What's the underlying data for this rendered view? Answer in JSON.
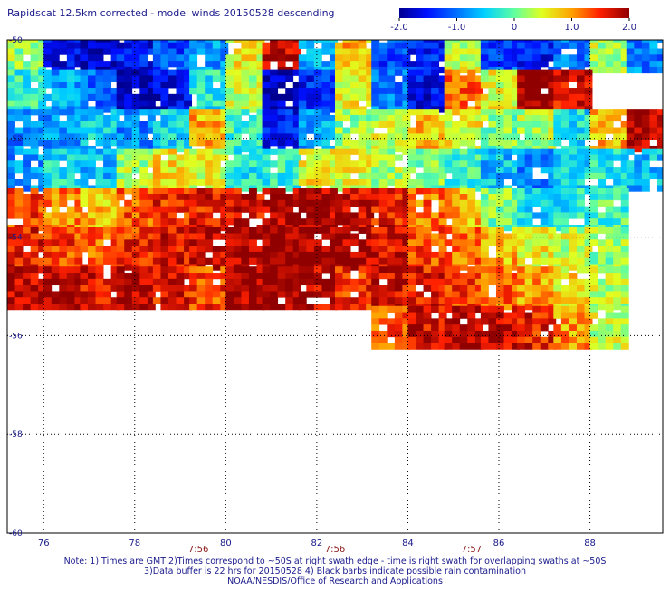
{
  "title": "Rapidscat 12.5km corrected - model winds 20150528 descending",
  "colorbar": {
    "tick_labels": [
      "-2.0",
      "-1.0",
      "0",
      "1.0",
      "2.0"
    ],
    "tick_values": [
      -2.0,
      -1.0,
      0,
      1.0,
      2.0
    ]
  },
  "chart_data": {
    "type": "heatmap",
    "title": "Rapidscat 12.5km corrected - model winds 20150528 descending",
    "xlabel": "",
    "ylabel": "",
    "xlim": [
      75.2,
      89.6
    ],
    "ylim": [
      -60,
      -50
    ],
    "xticks": [
      76,
      78,
      80,
      82,
      84,
      86,
      88
    ],
    "xtick_labels": [
      "76",
      "78",
      "80",
      "82",
      "84",
      "86",
      "88"
    ],
    "yticks": [
      -50,
      -52,
      -54,
      -56,
      -58,
      -60
    ],
    "ytick_labels": [
      "-50",
      "-52",
      "-54",
      "-56",
      "-58",
      "-60"
    ],
    "vmin": -2.0,
    "vmax": 2.0,
    "grid": true,
    "time_labels": [
      {
        "x": 79.4,
        "label": "7:56"
      },
      {
        "x": 82.4,
        "label": "7:56"
      },
      {
        "x": 85.4,
        "label": "7:57"
      }
    ],
    "grid_cell_deg_x": 0.17,
    "grid_cell_deg_y": 0.125,
    "cells": [
      [
        -50.2,
        75.6,
        0.2
      ],
      [
        -50.2,
        76.4,
        -1.6
      ],
      [
        -50.2,
        77.2,
        -1.8
      ],
      [
        -50.2,
        78.0,
        -1.5
      ],
      [
        -50.2,
        78.8,
        -1.2
      ],
      [
        -50.2,
        79.6,
        -0.8
      ],
      [
        -50.2,
        80.4,
        0.6
      ],
      [
        -50.2,
        81.2,
        1.8
      ],
      [
        -50.2,
        82.0,
        -0.6
      ],
      [
        -50.2,
        82.8,
        0.9
      ],
      [
        -50.2,
        83.6,
        -1.2
      ],
      [
        -50.2,
        84.4,
        -1.4
      ],
      [
        -50.2,
        85.2,
        0.4
      ],
      [
        -50.2,
        86.0,
        -1.2
      ],
      [
        -50.2,
        86.8,
        -1.5
      ],
      [
        -50.2,
        87.6,
        -1.0
      ],
      [
        -50.2,
        88.4,
        0.3
      ],
      [
        -50.2,
        89.2,
        -0.9
      ],
      [
        -51.0,
        75.6,
        -0.2
      ],
      [
        -51.0,
        76.4,
        -0.7
      ],
      [
        -51.0,
        77.2,
        -1.0
      ],
      [
        -51.0,
        78.0,
        -1.9
      ],
      [
        -51.0,
        78.8,
        -1.6
      ],
      [
        -51.0,
        79.6,
        -0.3
      ],
      [
        -51.0,
        80.4,
        0.4
      ],
      [
        -51.0,
        81.2,
        -1.8
      ],
      [
        -51.0,
        82.0,
        -1.4
      ],
      [
        -51.0,
        82.8,
        0.6
      ],
      [
        -51.0,
        83.6,
        -0.9
      ],
      [
        -51.0,
        84.4,
        -1.6
      ],
      [
        -51.0,
        85.2,
        1.2
      ],
      [
        -51.0,
        86.0,
        0.5
      ],
      [
        -51.0,
        86.8,
        2.0
      ],
      [
        -51.0,
        87.6,
        1.7
      ],
      [
        -51.8,
        75.6,
        -0.9
      ],
      [
        -51.8,
        76.4,
        -0.8
      ],
      [
        -51.8,
        77.2,
        -0.5
      ],
      [
        -51.8,
        78.0,
        -0.9
      ],
      [
        -51.8,
        78.8,
        -0.4
      ],
      [
        -51.8,
        79.6,
        0.9
      ],
      [
        -51.8,
        80.4,
        -0.2
      ],
      [
        -51.8,
        81.2,
        -1.5
      ],
      [
        -51.8,
        82.0,
        -0.7
      ],
      [
        -51.8,
        82.8,
        0.2
      ],
      [
        -51.8,
        83.6,
        0.4
      ],
      [
        -51.8,
        84.4,
        0.8
      ],
      [
        -51.8,
        85.2,
        0.6
      ],
      [
        -51.8,
        86.0,
        0.1
      ],
      [
        -51.8,
        86.8,
        0.3
      ],
      [
        -51.8,
        87.6,
        -0.4
      ],
      [
        -51.8,
        88.4,
        0.9
      ],
      [
        -51.8,
        89.2,
        1.9
      ],
      [
        -52.6,
        75.6,
        -0.8
      ],
      [
        -52.6,
        76.4,
        -0.4
      ],
      [
        -52.6,
        77.2,
        -0.6
      ],
      [
        -52.6,
        78.0,
        0.3
      ],
      [
        -52.6,
        78.8,
        0.7
      ],
      [
        -52.6,
        79.6,
        0.5
      ],
      [
        -52.6,
        80.4,
        -0.3
      ],
      [
        -52.6,
        81.2,
        -0.2
      ],
      [
        -52.6,
        82.0,
        0.6
      ],
      [
        -52.6,
        82.8,
        0.5
      ],
      [
        -52.6,
        83.6,
        0.3
      ],
      [
        -52.6,
        84.4,
        0.1
      ],
      [
        -52.6,
        85.2,
        -0.2
      ],
      [
        -52.6,
        86.0,
        -0.6
      ],
      [
        -52.6,
        86.8,
        -0.9
      ],
      [
        -52.6,
        87.6,
        -0.5
      ],
      [
        -52.6,
        88.4,
        -0.3
      ],
      [
        -52.6,
        89.2,
        -0.6
      ],
      [
        -53.4,
        75.6,
        1.4
      ],
      [
        -53.4,
        76.4,
        1.1
      ],
      [
        -53.4,
        77.2,
        0.8
      ],
      [
        -53.4,
        78.0,
        1.3
      ],
      [
        -53.4,
        78.8,
        1.5
      ],
      [
        -53.4,
        79.6,
        1.6
      ],
      [
        -53.4,
        80.4,
        1.7
      ],
      [
        -53.4,
        81.2,
        1.9
      ],
      [
        -53.4,
        82.0,
        1.9
      ],
      [
        -53.4,
        82.8,
        1.8
      ],
      [
        -53.4,
        83.6,
        1.6
      ],
      [
        -53.4,
        84.4,
        1.2
      ],
      [
        -53.4,
        85.2,
        0.9
      ],
      [
        -53.4,
        86.0,
        0.1
      ],
      [
        -53.4,
        86.8,
        -0.4
      ],
      [
        -53.4,
        87.6,
        -0.3
      ],
      [
        -53.4,
        88.4,
        -0.1
      ],
      [
        -54.2,
        75.6,
        1.6
      ],
      [
        -54.2,
        76.4,
        1.4
      ],
      [
        -54.2,
        77.2,
        1.3
      ],
      [
        -54.2,
        78.0,
        1.5
      ],
      [
        -54.2,
        78.8,
        1.7
      ],
      [
        -54.2,
        79.6,
        1.8
      ],
      [
        -54.2,
        80.4,
        1.9
      ],
      [
        -54.2,
        81.2,
        2.0
      ],
      [
        -54.2,
        82.0,
        2.0
      ],
      [
        -54.2,
        82.8,
        1.9
      ],
      [
        -54.2,
        83.6,
        1.7
      ],
      [
        -54.2,
        84.4,
        1.4
      ],
      [
        -54.2,
        85.2,
        1.2
      ],
      [
        -54.2,
        86.0,
        0.9
      ],
      [
        -54.2,
        86.8,
        0.6
      ],
      [
        -54.2,
        87.6,
        0.4
      ],
      [
        -54.2,
        88.4,
        0.2
      ],
      [
        -55.0,
        75.6,
        1.8
      ],
      [
        -55.0,
        76.4,
        1.9
      ],
      [
        -55.0,
        77.2,
        1.7
      ],
      [
        -55.0,
        78.0,
        1.9
      ],
      [
        -55.0,
        78.8,
        1.6
      ],
      [
        -55.0,
        79.6,
        1.4
      ],
      [
        -55.0,
        80.4,
        1.9
      ],
      [
        -55.0,
        81.2,
        2.0
      ],
      [
        -55.0,
        82.0,
        1.8
      ],
      [
        -55.0,
        82.8,
        1.5
      ],
      [
        -55.0,
        83.6,
        1.7
      ],
      [
        -55.0,
        84.4,
        1.6
      ],
      [
        -55.0,
        85.2,
        1.4
      ],
      [
        -55.0,
        86.0,
        1.2
      ],
      [
        -55.0,
        86.8,
        1.0
      ],
      [
        -55.0,
        87.6,
        0.7
      ],
      [
        -55.0,
        88.4,
        0.3
      ],
      [
        -55.8,
        83.6,
        1.3
      ],
      [
        -55.8,
        84.4,
        1.7
      ],
      [
        -55.8,
        85.2,
        1.9
      ],
      [
        -55.8,
        86.0,
        1.8
      ],
      [
        -55.8,
        86.8,
        1.6
      ],
      [
        -55.8,
        87.6,
        1.0
      ],
      [
        -55.8,
        88.4,
        0.4
      ]
    ]
  },
  "notes": [
    "Note: 1) Times are GMT 2)Times correspond to ~50S at right swath edge - time is right swath for overlapping swaths at ~50S",
    "3)Data buffer is 22 hrs for 20150528 4) Black barbs indicate possible rain contamination",
    "NOAA/NESDIS/Office of Research and Applications"
  ]
}
